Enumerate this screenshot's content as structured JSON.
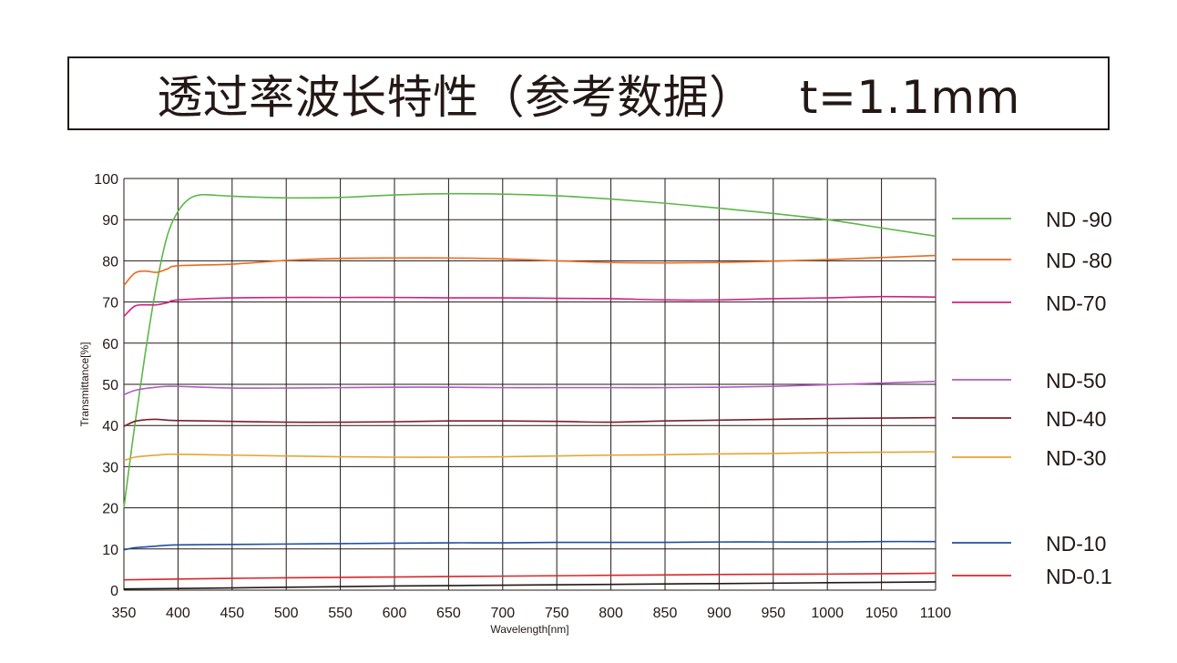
{
  "title": "透过率波长特性（参考数据）   t=1.1mm",
  "chart_data": {
    "type": "line",
    "xlabel": "Wavelength[nm]",
    "ylabel": "Transmittance[%]",
    "xlim": [
      350,
      1100
    ],
    "ylim": [
      0,
      100
    ],
    "xticks": [
      "350",
      "400",
      "450",
      "500",
      "550",
      "600",
      "650",
      "700",
      "750",
      "800",
      "850",
      "900",
      "950",
      "1000",
      "1050",
      "1100"
    ],
    "yticks": [
      "0",
      "10",
      "20",
      "30",
      "40",
      "50",
      "60",
      "70",
      "80",
      "90",
      "100"
    ],
    "grid": true,
    "legend_position": "right",
    "series": [
      {
        "name": "ND -90",
        "color": "#5bb848",
        "x": [
          350,
          360,
          370,
          380,
          390,
          400,
          410,
          420,
          430,
          450,
          500,
          550,
          600,
          650,
          700,
          750,
          800,
          850,
          900,
          950,
          1000,
          1050,
          1100
        ],
        "y": [
          20,
          40,
          58,
          74,
          86,
          92,
          95,
          96,
          96,
          95.7,
          95.3,
          95.4,
          96,
          96.3,
          96.2,
          95.8,
          95,
          94,
          92.8,
          91.5,
          90,
          88,
          86
        ]
      },
      {
        "name": "ND -80",
        "color": "#ea6a20",
        "x": [
          350,
          360,
          370,
          380,
          390,
          400,
          450,
          500,
          550,
          600,
          650,
          700,
          750,
          800,
          850,
          900,
          950,
          1000,
          1050,
          1100
        ],
        "y": [
          74,
          77,
          77.5,
          77.2,
          78,
          78.8,
          79.2,
          80.1,
          80.6,
          80.7,
          80.7,
          80.5,
          80,
          79.6,
          79.5,
          79.6,
          79.9,
          80.3,
          80.8,
          81.3
        ]
      },
      {
        "name": "ND-70",
        "color": "#d4207e",
        "x": [
          350,
          360,
          370,
          380,
          390,
          400,
          450,
          500,
          550,
          600,
          650,
          700,
          750,
          800,
          850,
          900,
          950,
          1000,
          1050,
          1100
        ],
        "y": [
          66.5,
          69,
          69.3,
          69.3,
          69.8,
          70.5,
          71,
          71.1,
          71.1,
          71.1,
          71,
          71,
          70.9,
          70.8,
          70.5,
          70.5,
          70.8,
          71,
          71.3,
          71.2
        ]
      },
      {
        "name": "ND-50",
        "color": "#b05cc0",
        "x": [
          350,
          360,
          370,
          380,
          390,
          400,
          450,
          500,
          550,
          600,
          650,
          700,
          750,
          800,
          850,
          900,
          950,
          1000,
          1050,
          1100
        ],
        "y": [
          47.5,
          48.5,
          49,
          49.3,
          49.5,
          49.5,
          49.1,
          49.1,
          49.2,
          49.3,
          49.3,
          49.2,
          49.2,
          49.2,
          49.2,
          49.3,
          49.5,
          49.9,
          50.3,
          50.7
        ]
      },
      {
        "name": "ND-40",
        "color": "#7a1e2a",
        "x": [
          350,
          360,
          370,
          380,
          390,
          400,
          450,
          500,
          550,
          600,
          650,
          700,
          750,
          800,
          850,
          900,
          950,
          1000,
          1050,
          1100
        ],
        "y": [
          39.8,
          41,
          41.4,
          41.5,
          41.3,
          41.2,
          41,
          40.8,
          40.8,
          40.9,
          41.1,
          41.1,
          41,
          40.8,
          41.1,
          41.3,
          41.5,
          41.7,
          41.8,
          41.9
        ]
      },
      {
        "name": "ND-30",
        "color": "#e6a532",
        "x": [
          350,
          360,
          370,
          380,
          390,
          400,
          450,
          500,
          550,
          600,
          650,
          700,
          750,
          800,
          850,
          900,
          950,
          1000,
          1050,
          1100
        ],
        "y": [
          31.5,
          32.3,
          32.6,
          32.8,
          33,
          33,
          32.8,
          32.6,
          32.4,
          32.3,
          32.3,
          32.4,
          32.6,
          32.8,
          32.9,
          33.1,
          33.2,
          33.4,
          33.5,
          33.6
        ]
      },
      {
        "name": "ND-10",
        "color": "#1f4ea3",
        "x": [
          350,
          360,
          370,
          380,
          390,
          400,
          450,
          500,
          550,
          600,
          650,
          700,
          750,
          800,
          850,
          900,
          950,
          1000,
          1050,
          1100
        ],
        "y": [
          9.8,
          10.3,
          10.5,
          10.7,
          10.9,
          11,
          11.1,
          11.2,
          11.3,
          11.4,
          11.5,
          11.5,
          11.6,
          11.6,
          11.6,
          11.7,
          11.7,
          11.7,
          11.8,
          11.8
        ]
      },
      {
        "name": "ND-0.1",
        "color": "#d9262a",
        "x": [
          350,
          400,
          500,
          600,
          700,
          800,
          900,
          1000,
          1100
        ],
        "y": [
          2.5,
          2.7,
          3,
          3.2,
          3.4,
          3.6,
          3.8,
          3.9,
          4.1
        ]
      },
      {
        "name": "",
        "color": "#231815",
        "x": [
          350,
          400,
          500,
          600,
          700,
          800,
          900,
          1000,
          1100
        ],
        "y": [
          0.3,
          0.4,
          0.7,
          1,
          1.2,
          1.4,
          1.6,
          1.8,
          2
        ]
      }
    ]
  }
}
